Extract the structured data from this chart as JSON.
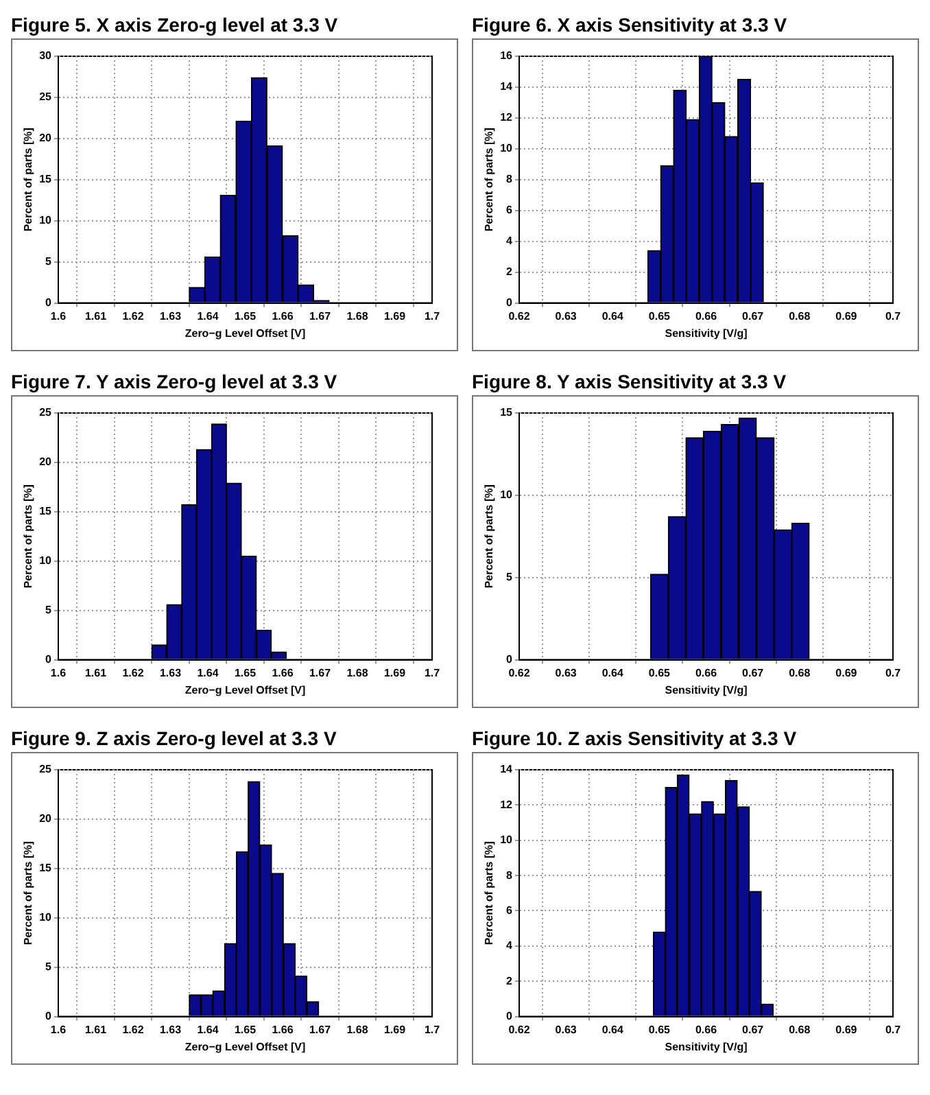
{
  "chart_data": [
    {
      "type": "histogram",
      "title": "Figure 5. X axis Zero-g level at 3.3 V",
      "xlabel": "Zero−g Level Offset [V]",
      "ylabel": "Percent of parts [%]",
      "bins": [
        1.635,
        1.6392,
        1.6433,
        1.6475,
        1.6517,
        1.6558,
        1.66,
        1.6642,
        1.6683,
        1.6725
      ],
      "values": [
        1.9,
        5.6,
        13.1,
        22.1,
        27.4,
        19.1,
        8.2,
        2.2,
        0.3
      ],
      "color": "#0a0a8c",
      "xlim": [
        1.6,
        1.7
      ],
      "xticks": [
        1.6,
        1.61,
        1.62,
        1.63,
        1.64,
        1.65,
        1.66,
        1.67,
        1.68,
        1.69,
        1.7
      ],
      "ylim": [
        0,
        30
      ],
      "yticks": [
        0,
        5,
        10,
        15,
        20,
        25,
        30
      ],
      "grid": true
    },
    {
      "type": "histogram",
      "title": "Figure 6. X axis Sensitivity at 3.3 V",
      "xlabel": "Sensitivity [V/g]",
      "ylabel": "Percent of parts [%]",
      "bins": [
        0.6475,
        0.6503,
        0.653,
        0.6558,
        0.6585,
        0.6613,
        0.664,
        0.6668,
        0.6695,
        0.6723
      ],
      "values": [
        3.4,
        8.9,
        13.8,
        11.9,
        16.0,
        13.0,
        10.8,
        14.5,
        7.8
      ],
      "color": "#0a0a8c",
      "xlim": [
        0.62,
        0.7
      ],
      "xticks": [
        0.62,
        0.63,
        0.64,
        0.65,
        0.66,
        0.67,
        0.68,
        0.69,
        0.7
      ],
      "ylim": [
        0,
        16
      ],
      "yticks": [
        0,
        2,
        4,
        6,
        8,
        10,
        12,
        14,
        16
      ],
      "grid": true
    },
    {
      "type": "histogram",
      "title": "Figure 7. Y axis Zero-g level at 3.3 V",
      "xlabel": "Zero−g Level Offset [V]",
      "ylabel": "Percent of parts [%]",
      "bins": [
        1.625,
        1.629,
        1.633,
        1.637,
        1.641,
        1.645,
        1.649,
        1.653,
        1.657,
        1.661
      ],
      "values": [
        1.5,
        5.6,
        15.7,
        21.3,
        23.9,
        17.9,
        10.5,
        3.0,
        0.8
      ],
      "color": "#0a0a8c",
      "xlim": [
        1.6,
        1.7
      ],
      "xticks": [
        1.6,
        1.61,
        1.62,
        1.63,
        1.64,
        1.65,
        1.66,
        1.67,
        1.68,
        1.69,
        1.7
      ],
      "ylim": [
        0,
        25
      ],
      "yticks": [
        0,
        5,
        10,
        15,
        20,
        25
      ],
      "grid": true
    },
    {
      "type": "histogram",
      "title": "Figure 8. Y axis Sensitivity at 3.3 V",
      "xlabel": "Sensitivity [V/g]",
      "ylabel": "Percent of parts [%]",
      "bins": [
        0.6481,
        0.6519,
        0.6557,
        0.6594,
        0.6632,
        0.667,
        0.6708,
        0.6746,
        0.6783,
        0.6821
      ],
      "values": [
        5.2,
        8.7,
        13.5,
        13.9,
        14.3,
        14.7,
        13.5,
        7.9,
        8.3
      ],
      "color": "#0a0a8c",
      "xlim": [
        0.62,
        0.7
      ],
      "xticks": [
        0.62,
        0.63,
        0.64,
        0.65,
        0.66,
        0.67,
        0.68,
        0.69,
        0.7
      ],
      "ylim": [
        0,
        15
      ],
      "yticks": [
        0,
        5,
        10,
        15
      ],
      "grid": true
    },
    {
      "type": "histogram",
      "title": "Figure 9. Z axis Zero-g level at 3.3 V",
      "xlabel": "Zero−g Level Offset [V]",
      "ylabel": "Percent of parts [%]",
      "bins": [
        1.635,
        1.6382,
        1.6413,
        1.6445,
        1.6476,
        1.6508,
        1.6539,
        1.6571,
        1.6602,
        1.6634,
        1.6665,
        1.6697
      ],
      "values": [
        2.2,
        2.2,
        2.6,
        7.4,
        16.7,
        23.8,
        17.4,
        14.5,
        7.4,
        4.1,
        1.5
      ],
      "color": "#0a0a8c",
      "xlim": [
        1.6,
        1.7
      ],
      "xticks": [
        1.6,
        1.61,
        1.62,
        1.63,
        1.64,
        1.65,
        1.66,
        1.67,
        1.68,
        1.69,
        1.7
      ],
      "ylim": [
        0,
        25
      ],
      "yticks": [
        0,
        5,
        10,
        15,
        20,
        25
      ],
      "grid": true
    },
    {
      "type": "histogram",
      "title": "Figure 10. Z axis Sensitivity at 3.3 V",
      "xlabel": "Sensitivity [V/g]",
      "ylabel": "Percent of parts [%]",
      "bins": [
        0.6487,
        0.6513,
        0.6538,
        0.6564,
        0.659,
        0.6616,
        0.6641,
        0.6667,
        0.6693,
        0.6718,
        0.6744
      ],
      "values": [
        4.8,
        13.0,
        13.7,
        11.5,
        12.2,
        11.5,
        13.4,
        11.9,
        7.1,
        0.7
      ],
      "color": "#0a0a8c",
      "xlim": [
        0.62,
        0.7
      ],
      "xticks": [
        0.62,
        0.63,
        0.64,
        0.65,
        0.66,
        0.67,
        0.68,
        0.69,
        0.7
      ],
      "ylim": [
        0,
        14
      ],
      "yticks": [
        0,
        2,
        4,
        6,
        8,
        10,
        12,
        14
      ],
      "grid": true
    }
  ]
}
